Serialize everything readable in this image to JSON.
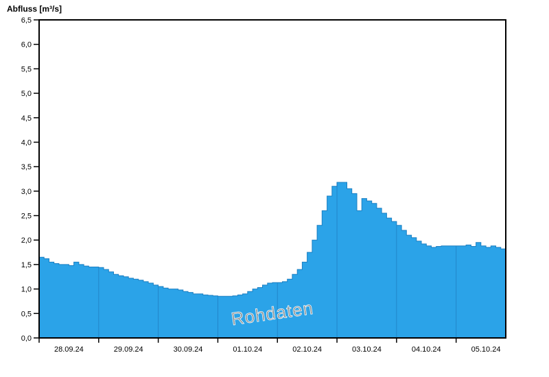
{
  "title": "Abfluss [m³/s]",
  "watermark": "Rohdaten",
  "colors": {
    "series_fill": "#2ba3e8",
    "series_edge": "#1b7fc2",
    "day_line_in_fill": "#1a6db0",
    "axis": "#000000",
    "watermark_text": "#8c8c8c",
    "background": "#ffffff"
  },
  "chart_data": {
    "type": "area",
    "title": "Abfluss [m³/s]",
    "xlabel": "",
    "ylabel": "Abfluss [m³/s]",
    "ylim": [
      0,
      6.5
    ],
    "ytick_step": 0.5,
    "ytick_labels": [
      "0,0",
      "0,5",
      "1,0",
      "1,5",
      "2,0",
      "2,5",
      "3,0",
      "3,5",
      "4,0",
      "4,5",
      "5,0",
      "5,5",
      "6,0",
      "6,5"
    ],
    "categories": [
      "28.09.24",
      "29.09.24",
      "30.09.24",
      "01.10.24",
      "02.10.24",
      "03.10.24",
      "04.10.24",
      "05.10.24"
    ],
    "sample_interval_hours": 2,
    "grid": "day-boundaries-only",
    "legend": "none",
    "annotation": "Rohdaten",
    "values": [
      1.65,
      1.62,
      1.55,
      1.52,
      1.5,
      1.5,
      1.48,
      1.55,
      1.5,
      1.47,
      1.45,
      1.45,
      1.44,
      1.4,
      1.35,
      1.3,
      1.27,
      1.25,
      1.22,
      1.2,
      1.18,
      1.15,
      1.12,
      1.08,
      1.05,
      1.02,
      1.0,
      1.0,
      0.98,
      0.95,
      0.93,
      0.9,
      0.9,
      0.88,
      0.87,
      0.86,
      0.85,
      0.85,
      0.85,
      0.86,
      0.88,
      0.9,
      0.95,
      1.0,
      1.03,
      1.08,
      1.12,
      1.13,
      1.13,
      1.15,
      1.2,
      1.3,
      1.4,
      1.55,
      1.75,
      2.0,
      2.3,
      2.6,
      2.9,
      3.1,
      3.18,
      3.18,
      3.05,
      2.95,
      2.6,
      2.85,
      2.8,
      2.75,
      2.65,
      2.55,
      2.45,
      2.38,
      2.3,
      2.2,
      2.1,
      2.05,
      1.98,
      1.92,
      1.88,
      1.85,
      1.87,
      1.88,
      1.88,
      1.88,
      1.88,
      1.88,
      1.9,
      1.87,
      1.95,
      1.88,
      1.85,
      1.88,
      1.85,
      1.82,
      1.78
    ]
  }
}
